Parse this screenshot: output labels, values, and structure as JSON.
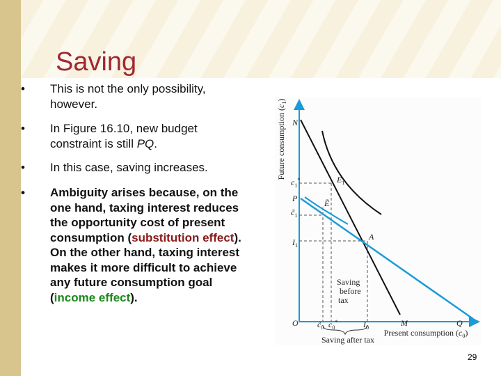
{
  "title": "Saving",
  "bullets": [
    [
      {
        "text": "This is not the only possibility, however."
      }
    ],
    [
      {
        "text": "In Figure 16.10, new budget constraint is still "
      },
      {
        "text": "PQ",
        "style": "italic"
      },
      {
        "text": "."
      }
    ],
    [
      {
        "text": "In this case, saving increases."
      }
    ],
    [
      {
        "text": "Ambiguity arises because, on the one hand, taxing interest reduces the opportunity cost of present consumption ("
      },
      {
        "text": "substitution effect",
        "color": "#8b1a1a"
      },
      {
        "text": ").  On the other hand, taxing interest makes it more difficult to achieve any future consumption goal ("
      },
      {
        "text": "income effect",
        "color": "#1a8a1a"
      },
      {
        "text": ")."
      }
    ]
  ],
  "bold_bullets": [
    false,
    false,
    false,
    true
  ],
  "figure": {
    "y_axis": {
      "text": "Future consumption (",
      "var": "c",
      "sub": "1",
      "end": ")"
    },
    "x_axis": {
      "text": "Present consumption (",
      "var": "c",
      "sub": "0",
      "end": ")"
    },
    "N": "N",
    "P": "P",
    "Q": "Q",
    "M": "M",
    "O": "O",
    "A": "A",
    "c1_star": {
      "var": "c",
      "sub": "1",
      "sup": "*"
    },
    "c1_tilde": {
      "var": "c̃",
      "sub": "1"
    },
    "c0_tilde": {
      "var": "c̃",
      "sub": "0"
    },
    "c0_star": {
      "var": "c",
      "sub": "0",
      "sup": "*"
    },
    "I1": {
      "var": "I",
      "sub": "1"
    },
    "I0": {
      "var": "I",
      "sub": "0"
    },
    "E1": {
      "var": "E",
      "sub": "1"
    },
    "E_tilde": "Ẽ",
    "saving_before_tax": [
      "Saving",
      "before",
      "tax"
    ],
    "saving_after_tax": "Saving after tax"
  },
  "page_number": "29"
}
